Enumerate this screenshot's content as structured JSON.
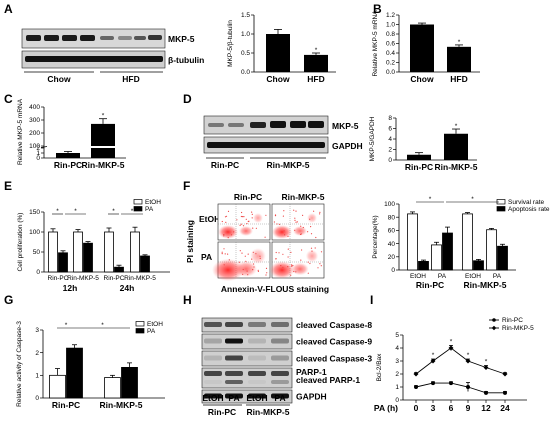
{
  "panels": {
    "A": "A",
    "B": "B",
    "C": "C",
    "D": "D",
    "E": "E",
    "F": "F",
    "G": "G",
    "H": "H",
    "I": "I"
  },
  "blots": {
    "A": {
      "rows": [
        "MKP-5",
        "β-tubulin"
      ],
      "groups": [
        "Chow",
        "HFD"
      ]
    },
    "D": {
      "rows": [
        "MKP-5",
        "GAPDH"
      ],
      "groups": [
        "Rin-PC",
        "Rin-MKP-5"
      ]
    },
    "H": {
      "rows": [
        "cleaved Caspase-8",
        "cleaved Caspase-9",
        "cleaved Caspase-3",
        "PARP-1",
        "cleaved PARP-1",
        "GAPDH"
      ],
      "lanes": [
        "EtOH",
        "PA",
        "EtOH",
        "PA"
      ],
      "groups": [
        "Rin-PC",
        "Rin-MKP-5"
      ]
    }
  },
  "flow": {
    "col_labels": [
      "Rin-PC",
      "Rin-MKP-5"
    ],
    "row_labels": [
      "EtOH",
      "PA"
    ],
    "ylabel": "PI staining",
    "xlabel": "Annexin-V-FLOUS staining"
  },
  "colors": {
    "black": "#000000",
    "white": "#ffffff",
    "gray": "#888888"
  },
  "chart_data": [
    {
      "id": "A",
      "type": "bar",
      "categories": [
        "Chow",
        "HFD"
      ],
      "values": [
        1.0,
        0.45
      ],
      "errors": [
        0.12,
        0.05
      ],
      "ylabel": "MKP-5/β-tubulin",
      "ylim": [
        0,
        1.5
      ],
      "yticks": [
        "0.0",
        "0.5",
        "1.0",
        "1.5"
      ],
      "sig": [
        "",
        "*"
      ]
    },
    {
      "id": "B",
      "type": "bar",
      "categories": [
        "Chow",
        "HFD"
      ],
      "values": [
        1.0,
        0.53
      ],
      "errors": [
        0.03,
        0.04
      ],
      "ylabel": "Relative MKP-5 mRNA",
      "ylim": [
        0,
        1.2
      ],
      "yticks": [
        "0.0",
        "0.2",
        "0.4",
        "0.6",
        "0.8",
        "1.0",
        "1.2"
      ],
      "sig": [
        "",
        "*"
      ]
    },
    {
      "id": "C",
      "type": "bar",
      "broken_axis": true,
      "categories": [
        "Rin-PC",
        "Rin-MKP-5"
      ],
      "values": [
        1.0,
        270
      ],
      "errors": [
        0.3,
        40
      ],
      "ylabel": "Relative MKP-5 mRNA",
      "yticks": [
        "0",
        "1",
        "2",
        "100",
        "200",
        "300",
        "400"
      ],
      "sig": [
        "",
        "*"
      ]
    },
    {
      "id": "D",
      "type": "bar",
      "categories": [
        "Rin-PC",
        "Rin-MKP-5"
      ],
      "values": [
        1.0,
        5.0
      ],
      "errors": [
        0.4,
        0.9
      ],
      "ylabel": "MKP-5/GAPDH",
      "ylim": [
        0,
        8
      ],
      "yticks": [
        "0",
        "2",
        "4",
        "6",
        "8"
      ],
      "sig": [
        "",
        "*"
      ]
    },
    {
      "id": "E",
      "type": "bar",
      "ylabel": "Cell proliferation (%)",
      "ylim": [
        0,
        150
      ],
      "yticks": [
        "0",
        "50",
        "100",
        "150"
      ],
      "subgroups": [
        "Rin-PC",
        "Rin-MKP-5",
        "Rin-PC",
        "Rin-MKP-5"
      ],
      "groups": [
        "12h",
        "24h"
      ],
      "series": [
        {
          "name": "EtOH",
          "values": [
            100,
            100,
            100,
            100
          ],
          "errors": [
            8,
            6,
            10,
            12
          ]
        },
        {
          "name": "PA",
          "values": [
            48,
            72,
            12,
            40
          ],
          "errors": [
            5,
            4,
            5,
            3
          ]
        }
      ],
      "sig_marks": [
        "*",
        "*",
        "*",
        "*"
      ]
    },
    {
      "id": "F",
      "type": "bar",
      "ylabel": "Percentage(%)",
      "ylim": [
        0,
        100
      ],
      "yticks": [
        "0",
        "20",
        "40",
        "60",
        "80",
        "100"
      ],
      "subgroups": [
        "EtOH",
        "PA",
        "EtOH",
        "PA"
      ],
      "groups": [
        "Rin-PC",
        "Rin-MKP-5"
      ],
      "series": [
        {
          "name": "Survival rate",
          "values": [
            85,
            38,
            85,
            61
          ],
          "errors": [
            3,
            4,
            2,
            2
          ]
        },
        {
          "name": "Apoptosis rate",
          "values": [
            13,
            56,
            14,
            36
          ],
          "errors": [
            2,
            9,
            2,
            3
          ]
        }
      ],
      "sig_marks": [
        "*",
        "*"
      ]
    },
    {
      "id": "G",
      "type": "bar",
      "ylabel": "Relative activity of Caspase-3",
      "ylim": [
        0,
        3
      ],
      "yticks": [
        "0",
        "1",
        "2",
        "3"
      ],
      "groups": [
        "Rin-PC",
        "Rin-MKP-5"
      ],
      "series": [
        {
          "name": "EtOH",
          "values": [
            1.0,
            0.9
          ],
          "errors": [
            0.3,
            0.1
          ]
        },
        {
          "name": "PA",
          "values": [
            2.2,
            1.35
          ],
          "errors": [
            0.15,
            0.2
          ]
        }
      ],
      "sig_marks": [
        "*",
        "*"
      ]
    },
    {
      "id": "I",
      "type": "line",
      "x": [
        0,
        3,
        6,
        9,
        12,
        24
      ],
      "xlabel": "PA (h)",
      "ylabel": "Bcl-2/Bax",
      "ylim": [
        0,
        5
      ],
      "yticks": [
        "0",
        "1",
        "2",
        "3",
        "4",
        "5"
      ],
      "series": [
        {
          "name": "Rin-PC",
          "values": [
            1.0,
            1.3,
            1.3,
            1.0,
            0.55,
            0.55
          ],
          "errors": [
            0.1,
            0.1,
            0.1,
            0.35,
            0.1,
            0.1
          ]
        },
        {
          "name": "Rin-MKP-5",
          "values": [
            2.0,
            3.0,
            4.0,
            3.0,
            2.5,
            2.0
          ],
          "errors": [
            0.1,
            0.15,
            0.2,
            0.15,
            0.15,
            0.1
          ]
        }
      ],
      "sig_marks": [
        "*",
        "*",
        "*",
        "*"
      ]
    }
  ]
}
